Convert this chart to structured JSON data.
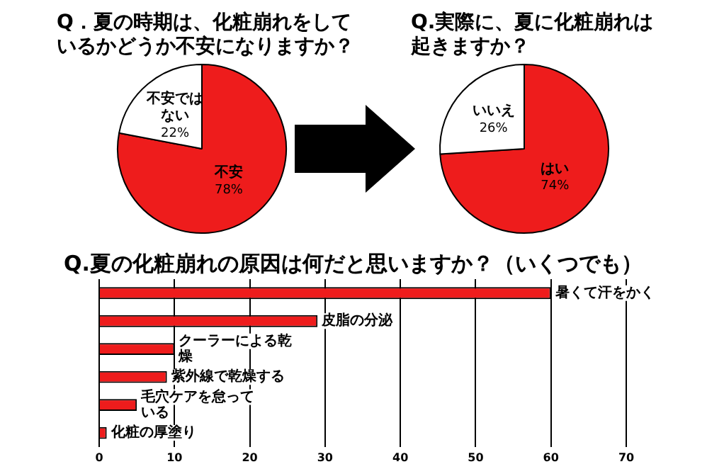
{
  "chart_data": [
    {
      "type": "pie",
      "title": "Q．夏の時期は、化粧崩れをしているかどうか不安になりますか？",
      "categories": [
        "不安",
        "不安ではない"
      ],
      "values": [
        78,
        22
      ],
      "colors": [
        "#ee1c1c",
        "#ffffff"
      ],
      "value_labels": [
        "78%",
        "22%"
      ]
    },
    {
      "type": "pie",
      "title": "Q.実際に、夏に化粧崩れは起きますか？",
      "categories": [
        "はい",
        "いいえ"
      ],
      "values": [
        74,
        26
      ],
      "colors": [
        "#ee1c1c",
        "#ffffff"
      ],
      "value_labels": [
        "74%",
        "26%"
      ]
    },
    {
      "type": "bar",
      "orientation": "horizontal",
      "title": "Q.夏の化粧崩れの原因は何だと思いますか？（いくつでも）",
      "categories": [
        "暑くて汗をかく",
        "皮脂の分泌",
        "クーラーによる乾燥",
        "紫外線で乾燥する",
        "毛穴ケアを怠っている",
        "化粧の厚塗り"
      ],
      "values": [
        60,
        29,
        10,
        9,
        5,
        1
      ],
      "color": "#ee1c1c",
      "xlim": [
        0,
        70
      ],
      "xticks": [
        0,
        10,
        20,
        30,
        40,
        50,
        60,
        70
      ],
      "grid": "x"
    }
  ]
}
